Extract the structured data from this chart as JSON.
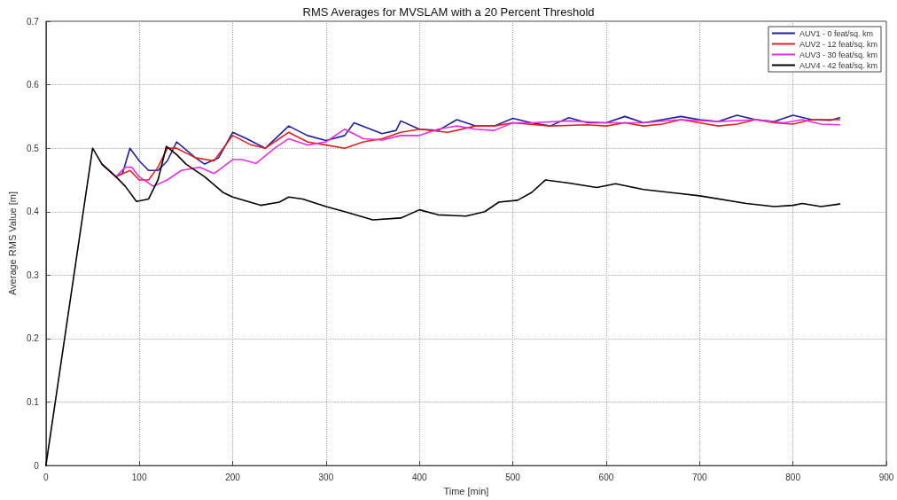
{
  "chart_data": {
    "type": "line",
    "title": "RMS Averages for MVSLAM with a 20 Percent Threshold",
    "xlabel": "Time [min]",
    "ylabel": "Average RMS Value [m]",
    "xlim": [
      0,
      900
    ],
    "xticks": [
      0,
      100,
      200,
      300,
      400,
      500,
      600,
      700,
      800,
      900
    ],
    "ylim": [
      0,
      0.7
    ],
    "yticks": [
      0,
      0.1,
      0.2,
      0.3,
      0.4,
      0.5,
      0.6,
      0.7
    ],
    "grid": true,
    "legend": "top right",
    "marker": "none",
    "line_style": "solid",
    "series": [
      {
        "name": "AUV1 - 0 feat/sq. km",
        "color": "#1f1f9e",
        "x": [
          75,
          82,
          90,
          100,
          110,
          120,
          130,
          140,
          160,
          170,
          185,
          200,
          215,
          235,
          260,
          280,
          300,
          320,
          330,
          360,
          375,
          380,
          400,
          420,
          440,
          460,
          480,
          500,
          520,
          540,
          560,
          580,
          600,
          620,
          640,
          660,
          680,
          700,
          720,
          740,
          760,
          780,
          800,
          820,
          840,
          850
        ],
        "values": [
          0.455,
          0.46,
          0.5,
          0.48,
          0.465,
          0.465,
          0.48,
          0.51,
          0.485,
          0.475,
          0.485,
          0.525,
          0.515,
          0.5,
          0.535,
          0.52,
          0.512,
          0.52,
          0.54,
          0.523,
          0.528,
          0.543,
          0.53,
          0.528,
          0.545,
          0.535,
          0.535,
          0.547,
          0.54,
          0.535,
          0.548,
          0.54,
          0.54,
          0.55,
          0.54,
          0.545,
          0.55,
          0.545,
          0.542,
          0.552,
          0.545,
          0.542,
          0.552,
          0.545,
          0.544,
          0.548
        ]
      },
      {
        "name": "AUV2 - 12 feat/sq. km",
        "color": "#e0201f",
        "x": [
          60,
          75,
          90,
          100,
          110,
          120,
          130,
          140,
          160,
          180,
          200,
          220,
          235,
          260,
          280,
          300,
          320,
          340,
          360,
          380,
          400,
          430,
          460,
          480,
          500,
          540,
          580,
          600,
          620,
          640,
          660,
          680,
          700,
          720,
          740,
          760,
          780,
          800,
          820,
          850
        ],
        "values": [
          0.475,
          0.455,
          0.465,
          0.45,
          0.45,
          0.47,
          0.5,
          0.5,
          0.485,
          0.48,
          0.52,
          0.505,
          0.5,
          0.525,
          0.51,
          0.505,
          0.5,
          0.51,
          0.515,
          0.525,
          0.53,
          0.525,
          0.535,
          0.535,
          0.54,
          0.535,
          0.537,
          0.535,
          0.54,
          0.535,
          0.538,
          0.545,
          0.54,
          0.535,
          0.538,
          0.545,
          0.54,
          0.538,
          0.545,
          0.545
        ]
      },
      {
        "name": "AUV3 - 30 feat/sq. km",
        "color": "#e030e0",
        "x": [
          60,
          75,
          85,
          92,
          100,
          115,
          130,
          145,
          165,
          180,
          200,
          210,
          225,
          245,
          260,
          280,
          300,
          320,
          340,
          360,
          380,
          400,
          420,
          440,
          460,
          480,
          500,
          520,
          560,
          600,
          640,
          680,
          720,
          760,
          790,
          810,
          830,
          850
        ],
        "values": [
          0.475,
          0.455,
          0.47,
          0.47,
          0.455,
          0.44,
          0.45,
          0.465,
          0.47,
          0.46,
          0.482,
          0.482,
          0.476,
          0.5,
          0.515,
          0.505,
          0.51,
          0.53,
          0.515,
          0.513,
          0.52,
          0.52,
          0.53,
          0.535,
          0.53,
          0.528,
          0.54,
          0.54,
          0.543,
          0.54,
          0.54,
          0.545,
          0.542,
          0.545,
          0.54,
          0.545,
          0.538,
          0.537
        ]
      },
      {
        "name": "AUV4 - 42 feat/sq. km",
        "color": "#000000",
        "x": [
          0,
          50,
          60,
          75,
          85,
          97,
          110,
          120,
          129,
          140,
          150,
          170,
          190,
          200,
          230,
          250,
          260,
          275,
          300,
          320,
          350,
          380,
          400,
          420,
          450,
          470,
          485,
          505,
          520,
          535,
          560,
          590,
          610,
          640,
          700,
          750,
          780,
          800,
          810,
          830,
          850
        ],
        "values": [
          0,
          0.5,
          0.475,
          0.455,
          0.44,
          0.416,
          0.42,
          0.45,
          0.503,
          0.49,
          0.475,
          0.455,
          0.43,
          0.423,
          0.41,
          0.415,
          0.423,
          0.42,
          0.408,
          0.4,
          0.387,
          0.39,
          0.403,
          0.395,
          0.393,
          0.4,
          0.415,
          0.418,
          0.43,
          0.45,
          0.445,
          0.438,
          0.444,
          0.435,
          0.425,
          0.413,
          0.408,
          0.41,
          0.413,
          0.408,
          0.412
        ]
      }
    ]
  }
}
